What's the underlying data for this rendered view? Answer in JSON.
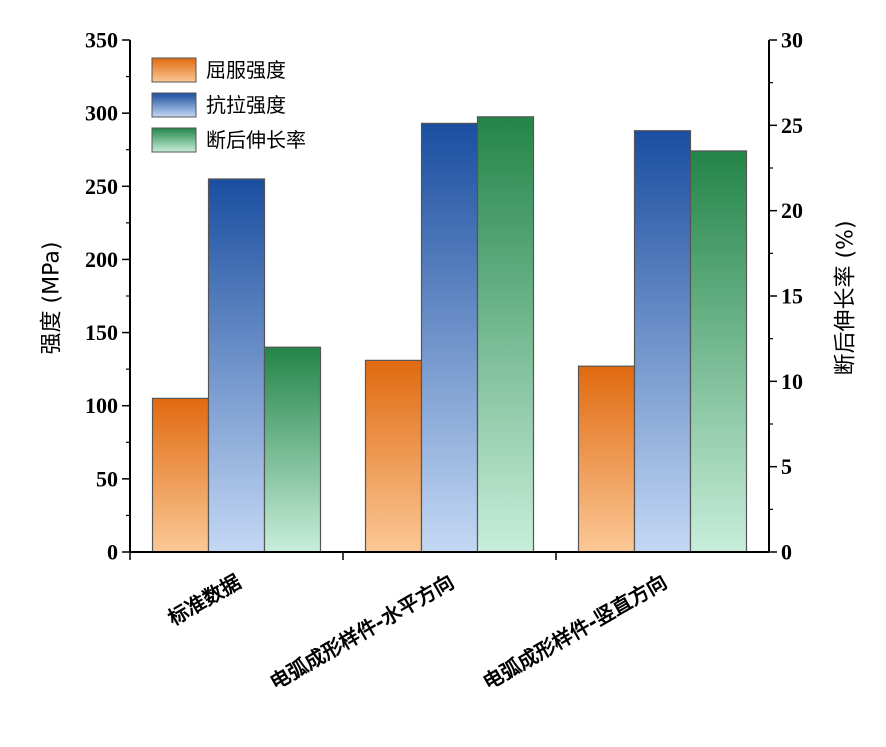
{
  "chart_data": {
    "type": "bar",
    "title": "",
    "categories": [
      "标准数据",
      "电弧成形样件-水平方向",
      "电弧成形样件-竖直方向"
    ],
    "series": [
      {
        "name": "屈服强度",
        "axis": "left",
        "values": [
          105,
          131,
          127
        ],
        "color_top": "#e06a10",
        "color_bottom": "#fbc896"
      },
      {
        "name": "抗拉强度",
        "axis": "left",
        "values": [
          255,
          293,
          288
        ],
        "color_top": "#1a4ea0",
        "color_bottom": "#c4d8f4"
      },
      {
        "name": "断后伸长率",
        "axis": "right",
        "values": [
          12.0,
          25.5,
          23.5
        ],
        "color_top": "#238548",
        "color_bottom": "#c8eedb"
      }
    ],
    "ylabel": "强度 (MPa)",
    "ylabel_right": "断后伸长率 (%)",
    "ylim": [
      0,
      350
    ],
    "ylim_right": [
      0,
      30
    ],
    "yticks": [
      0,
      50,
      100,
      150,
      200,
      250,
      300,
      350
    ],
    "yticks_right": [
      0,
      5,
      10,
      15,
      20,
      25,
      30
    ],
    "legend_position": "top-left",
    "grid": false
  }
}
